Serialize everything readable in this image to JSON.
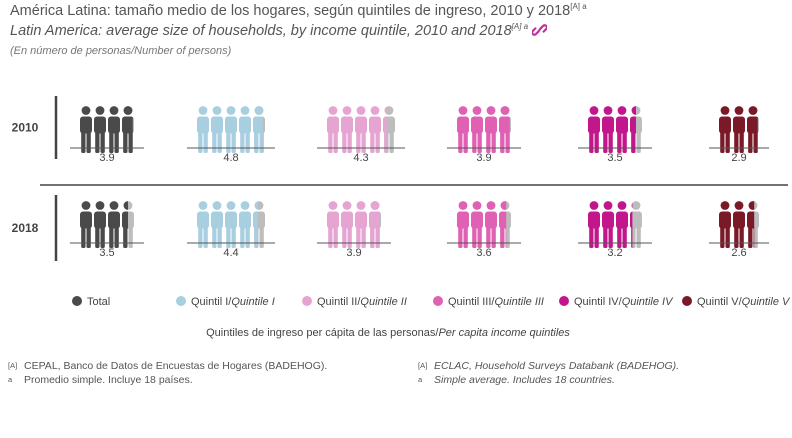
{
  "title": {
    "es": "América Latina: tamaño medio de los hogares, según quintiles de ingreso, 2010 y 2018",
    "en": "Latin America: average size of households, by income quintile, 2010 and 2018",
    "sup_es": "[A] a",
    "sup_en": "[A] a",
    "link_icon": "link-icon",
    "link_color": "#c0349a"
  },
  "subtitle": "(En número de personas/Number of persons)",
  "chart_data": {
    "type": "pictogram",
    "categories": [
      "Total",
      "Quintil I/Quintile I",
      "Quintil II/Quintile II",
      "Quintil III/Quintile III",
      "Quintil IV/Quintile IV",
      "Quintil V/Quintile V"
    ],
    "years": [
      "2010",
      "2018"
    ],
    "series": [
      {
        "name": "2010",
        "values": [
          3.9,
          4.8,
          4.3,
          3.9,
          3.5,
          2.9
        ],
        "labels": [
          "3.9",
          "4.8",
          "4.3",
          "3.9",
          "3.5",
          "2.9"
        ]
      },
      {
        "name": "2018",
        "values": [
          3.5,
          4.4,
          3.9,
          3.6,
          3.2,
          2.6
        ],
        "labels": [
          "3.5",
          "4.4",
          "3.9",
          "3.6",
          "3.2",
          "2.6"
        ]
      }
    ],
    "colors": [
      "#4a4a4a",
      "#a8cfe0",
      "#e5a4d2",
      "#e060b4",
      "#c2168c",
      "#7a1a28"
    ],
    "partial_color": "#bdbdbd",
    "legend": {
      "items": [
        {
          "main": "Total",
          "italic": ""
        },
        {
          "main": "Quintil I/",
          "italic": "Quintile I"
        },
        {
          "main": "Quintil II/",
          "italic": "Quintile II"
        },
        {
          "main": "Quintil III/",
          "italic": "Quintile III"
        },
        {
          "main": "Quintil IV/",
          "italic": "Quintile IV"
        },
        {
          "main": "Quintil V/",
          "italic": "Quintile V"
        }
      ],
      "placement": "bottom"
    },
    "xlabel": {
      "main": "Quintiles de ingreso per cápita de las personas/",
      "italic": "Per capita income quintiles"
    }
  },
  "footer": {
    "es": [
      {
        "mark": "[A]",
        "text": "CEPAL, Banco de Datos de Encuestas de Hogares (BADEHOG)."
      },
      {
        "mark": "a",
        "text": "Promedio simple. Incluye 18 países."
      }
    ],
    "en": [
      {
        "mark": "[A]",
        "text": "ECLAC, Household Surveys Databank (BADEHOG)."
      },
      {
        "mark": "a",
        "text": "Simple average. Includes 18 countries."
      }
    ]
  }
}
